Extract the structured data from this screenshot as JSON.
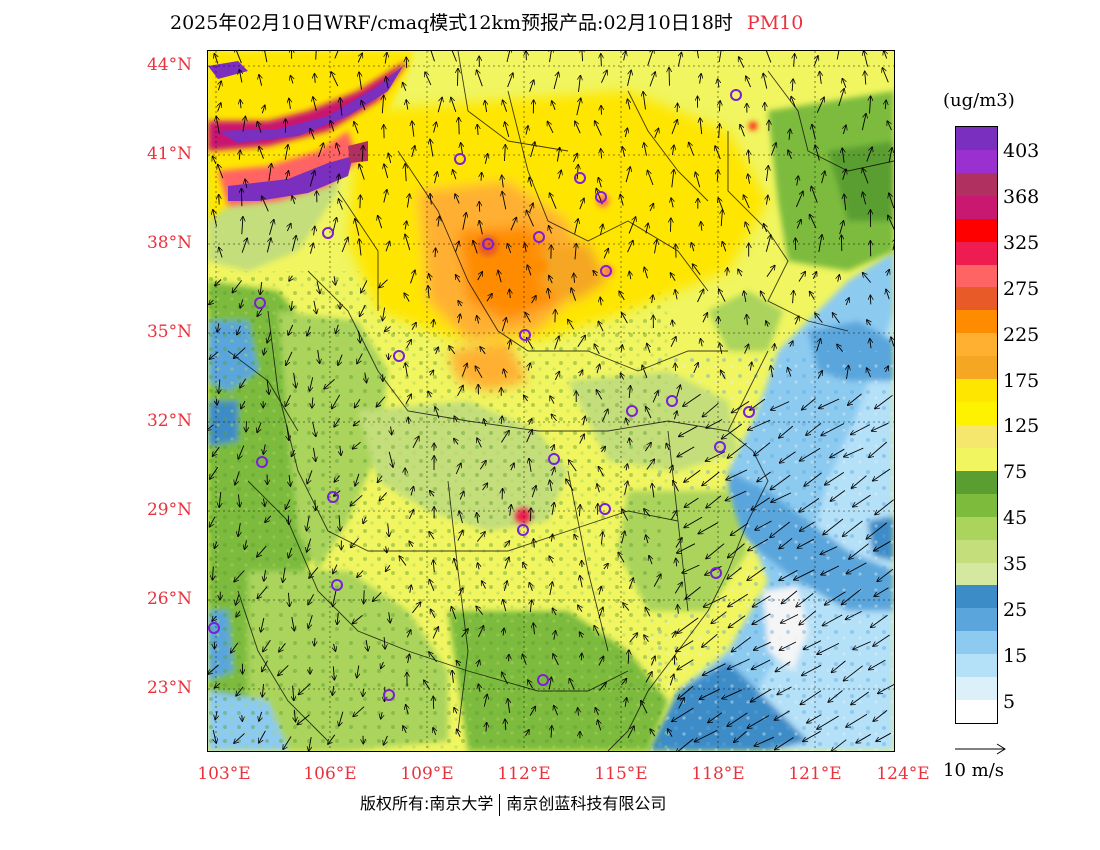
{
  "title": {
    "text": "2025年02月10日WRF/cmaq模式12km预报产品:02月10日18时",
    "variable": "PM10"
  },
  "axes": {
    "lat_labels": [
      "44°N",
      "41°N",
      "38°N",
      "35°N",
      "32°N",
      "29°N",
      "26°N",
      "23°N"
    ],
    "lon_labels": [
      "103°E",
      "106°E",
      "109°E",
      "112°E",
      "115°E",
      "118°E",
      "121°E",
      "124°E"
    ]
  },
  "legend": {
    "unit": "(ug/m3)",
    "labels": [
      "403",
      "368",
      "325",
      "275",
      "225",
      "175",
      "125",
      "75",
      "45",
      "35",
      "25",
      "15",
      "5"
    ],
    "colors": [
      "#7b2fbe",
      "#9b30d0",
      "#b03060",
      "#c8186f",
      "#ff0000",
      "#ee1c50",
      "#ff6464",
      "#e85a28",
      "#ff8c00",
      "#ffb030",
      "#f5a623",
      "#ffe600",
      "#fff200",
      "#f5e66e",
      "#f0f560",
      "#5a9e32",
      "#7cbb3c",
      "#aad45c",
      "#c3de7a",
      "#d4e8a0",
      "#3c8cc8",
      "#5aa6dc",
      "#8ccaf0",
      "#b4e0f8",
      "#dcf0fa",
      "#ffffff"
    ]
  },
  "wind_reference": {
    "label": "10 m/s"
  },
  "footer": {
    "left": "版权所有:南京大学",
    "right": "南京创蓝科技有限公司"
  },
  "colors": {
    "axis_label": "#e8323c",
    "city_marker": "#7b1fd8"
  }
}
